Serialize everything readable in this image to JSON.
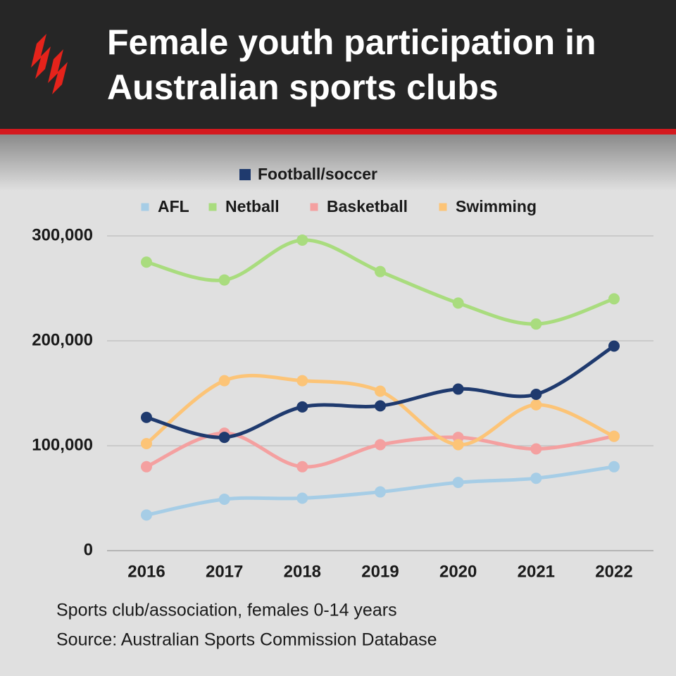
{
  "chart_data": {
    "type": "line",
    "title": "Female youth participation in Australian sports clubs",
    "categories": [
      "2016",
      "2017",
      "2018",
      "2019",
      "2020",
      "2021",
      "2022"
    ],
    "series": [
      {
        "name": "Football/soccer",
        "color": "#1f3a6e",
        "values": [
          127000,
          108000,
          137000,
          138000,
          154000,
          149000,
          195000
        ]
      },
      {
        "name": "AFL",
        "color": "#a6cde6",
        "values": [
          34000,
          49000,
          50000,
          56000,
          65000,
          69000,
          80000
        ]
      },
      {
        "name": "Netball",
        "color": "#a9dc7e",
        "values": [
          275000,
          258000,
          296000,
          266000,
          236000,
          216000,
          240000
        ]
      },
      {
        "name": "Basketball",
        "color": "#f4a0a0",
        "values": [
          80000,
          112000,
          80000,
          101000,
          108000,
          97000,
          109000
        ]
      },
      {
        "name": "Swimming",
        "color": "#fcc477",
        "values": [
          102000,
          162000,
          162000,
          152000,
          101000,
          139000,
          109000
        ]
      }
    ],
    "ylim": [
      0,
      300000
    ],
    "yticks": [
      0,
      {
        "value": 100000,
        "label": "100,000"
      },
      {
        "value": 200000,
        "label": "200,000"
      },
      {
        "value": 300000,
        "label": "300,000"
      }
    ],
    "grid": true,
    "notes": [
      "Sports club/association, females 0-14 years",
      "Source: Australian Sports Commission Database"
    ]
  }
}
